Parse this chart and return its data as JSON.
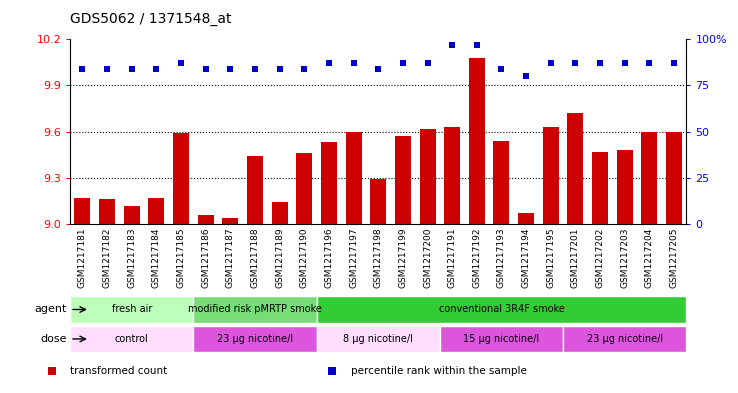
{
  "title": "GDS5062 / 1371548_at",
  "samples": [
    "GSM1217181",
    "GSM1217182",
    "GSM1217183",
    "GSM1217184",
    "GSM1217185",
    "GSM1217186",
    "GSM1217187",
    "GSM1217188",
    "GSM1217189",
    "GSM1217190",
    "GSM1217196",
    "GSM1217197",
    "GSM1217198",
    "GSM1217199",
    "GSM1217200",
    "GSM1217191",
    "GSM1217192",
    "GSM1217193",
    "GSM1217194",
    "GSM1217195",
    "GSM1217201",
    "GSM1217202",
    "GSM1217203",
    "GSM1217204",
    "GSM1217205"
  ],
  "bar_values": [
    9.17,
    9.16,
    9.12,
    9.17,
    9.59,
    9.06,
    9.04,
    9.44,
    9.14,
    9.46,
    9.53,
    9.6,
    9.29,
    9.57,
    9.62,
    9.63,
    10.08,
    9.54,
    9.07,
    9.63,
    9.72,
    9.47,
    9.48,
    9.6,
    9.6
  ],
  "percentile_values": [
    84,
    84,
    84,
    84,
    87,
    84,
    84,
    84,
    84,
    84,
    87,
    87,
    84,
    87,
    87,
    97,
    97,
    84,
    80,
    87,
    87,
    87,
    87,
    87,
    87
  ],
  "ylim_left": [
    9.0,
    10.2
  ],
  "ylim_right": [
    0,
    100
  ],
  "yticks_left": [
    9.0,
    9.3,
    9.6,
    9.9,
    10.2
  ],
  "yticks_right": [
    0,
    25,
    50,
    75,
    100
  ],
  "bar_color": "#cc0000",
  "dot_color": "#0000cc",
  "agent_groups": [
    {
      "label": "fresh air",
      "start": 0,
      "end": 5,
      "color": "#bbffbb"
    },
    {
      "label": "modified risk pMRTP smoke",
      "start": 5,
      "end": 10,
      "color": "#77dd77"
    },
    {
      "label": "conventional 3R4F smoke",
      "start": 10,
      "end": 25,
      "color": "#33cc33"
    }
  ],
  "dose_groups": [
    {
      "label": "control",
      "start": 0,
      "end": 5,
      "color": "#ffddff"
    },
    {
      "label": "23 μg nicotine/l",
      "start": 5,
      "end": 10,
      "color": "#dd55dd"
    },
    {
      "label": "8 μg nicotine/l",
      "start": 10,
      "end": 15,
      "color": "#ffddff"
    },
    {
      "label": "15 μg nicotine/l",
      "start": 15,
      "end": 20,
      "color": "#dd55dd"
    },
    {
      "label": "23 μg nicotine/l",
      "start": 20,
      "end": 25,
      "color": "#dd55dd"
    }
  ],
  "hlines": [
    9.3,
    9.6,
    9.9
  ],
  "legend_items": [
    {
      "label": "transformed count",
      "color": "#cc0000"
    },
    {
      "label": "percentile rank within the sample",
      "color": "#0000cc"
    }
  ]
}
